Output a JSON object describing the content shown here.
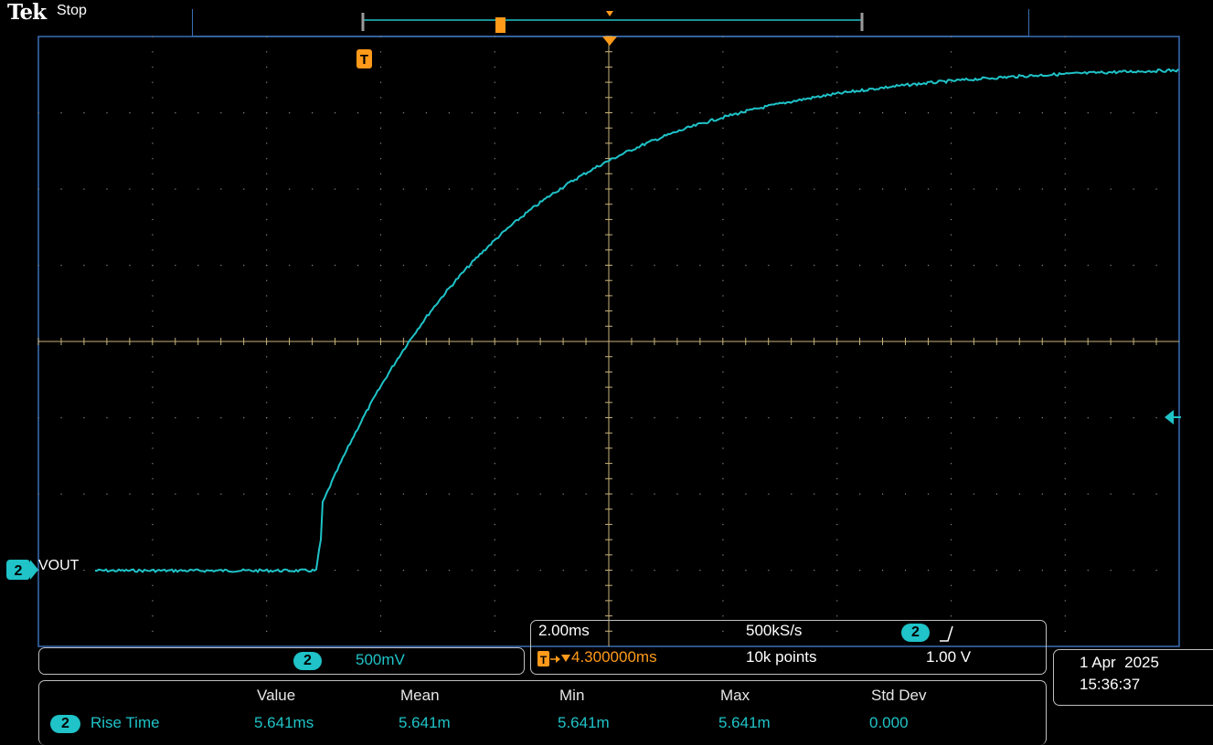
{
  "header": {
    "brand": "Tek",
    "acquisition_state": "Stop",
    "trigger_marker": "T"
  },
  "channel": {
    "number": "2",
    "label": "VOUT",
    "scale": "500mV",
    "color": "#1fc3c8"
  },
  "timebase": {
    "scale": "2.00ms",
    "sample_rate": "500kS/s",
    "trigger_delay": "4.300000ms",
    "record_length": "10k points",
    "trigger_level": "1.00 V"
  },
  "datetime": {
    "date": "1 Apr  2025",
    "time": "15:36:37"
  },
  "measurements": {
    "headers": [
      "Value",
      "Mean",
      "Min",
      "Max",
      "Std Dev"
    ],
    "row": {
      "name": "Rise Time",
      "value": "5.641ms",
      "mean": "5.641m",
      "min": "5.641m",
      "max": "5.641m",
      "std_dev": "0.000"
    }
  },
  "colors": {
    "trace": "#1fc3c8",
    "grid": "#c8b27a",
    "trigger": "#ff9a1a",
    "panel_border": "#bfbfbf"
  }
}
